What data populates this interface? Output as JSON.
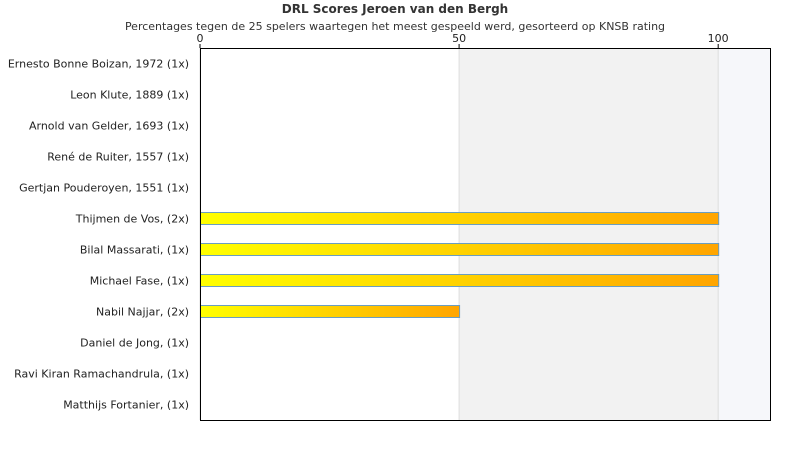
{
  "chart_data": {
    "type": "bar",
    "orientation": "horizontal",
    "title": "DRL Scores Jeroen van den Bergh",
    "subtitle": "Percentages tegen de 25 spelers waartegen het meest gespeeld werd, gesorteerd op KNSB rating",
    "categories": [
      "Ernesto Bonne Boizan, 1972 (1x)",
      "Leon Klute, 1889 (1x)",
      "Arnold van Gelder, 1693 (1x)",
      "René de Ruiter, 1557 (1x)",
      "Gertjan Pouderoyen, 1551 (1x)",
      "Thijmen de Vos,  (2x)",
      "Bilal Massarati,  (1x)",
      "Michael Fase,  (1x)",
      "Nabil Najjar,  (2x)",
      "Daniel de Jong,  (1x)",
      "Ravi Kiran Ramachandrula,  (1x)",
      "Matthijs Fortanier,  (1x)"
    ],
    "values": [
      0,
      0,
      0,
      0,
      0,
      100,
      100,
      100,
      50,
      0,
      0,
      0
    ],
    "xlim": [
      0,
      110
    ],
    "x_ticks": [
      0,
      50,
      100
    ],
    "x_axis_position": "top",
    "grid": true,
    "colors": {
      "bar_start": "#ffff00",
      "bar_end": "#ffa500",
      "bar_border": "#6a9ec0",
      "band_50_100": "#f2f2f2",
      "band_100_plus": "#f6f7fa",
      "axis": "#000000"
    }
  }
}
